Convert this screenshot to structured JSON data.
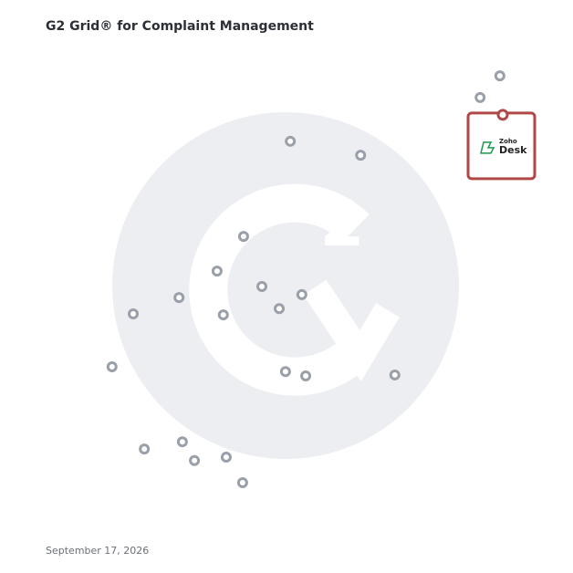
{
  "chart_data": {
    "type": "scatter",
    "title": "G2 Grid® for Complaint Management",
    "date": "September 17, 2026",
    "xlim": [
      0,
      100
    ],
    "ylim": [
      0,
      100
    ],
    "quadrant_lines": [
      50,
      50
    ],
    "x": [
      94.1,
      90.0,
      50.6,
      65.2,
      40.9,
      35.4,
      44.7,
      27.5,
      53.0,
      48.3,
      18.0,
      36.7,
      13.6,
      49.6,
      53.8,
      72.3,
      28.2,
      20.3,
      37.3,
      30.7,
      40.7
    ],
    "y": [
      93.9,
      89.4,
      80.3,
      77.4,
      60.5,
      53.3,
      50.1,
      47.8,
      48.4,
      45.5,
      44.4,
      44.2,
      33.4,
      32.4,
      31.5,
      31.7,
      17.8,
      16.3,
      14.6,
      13.9,
      9.3
    ],
    "color": "#9aa0aa",
    "highlight": {
      "brand": "Zoho",
      "product": "Desk",
      "x": 94.7,
      "y": 85.8,
      "color": "#b04848"
    }
  }
}
